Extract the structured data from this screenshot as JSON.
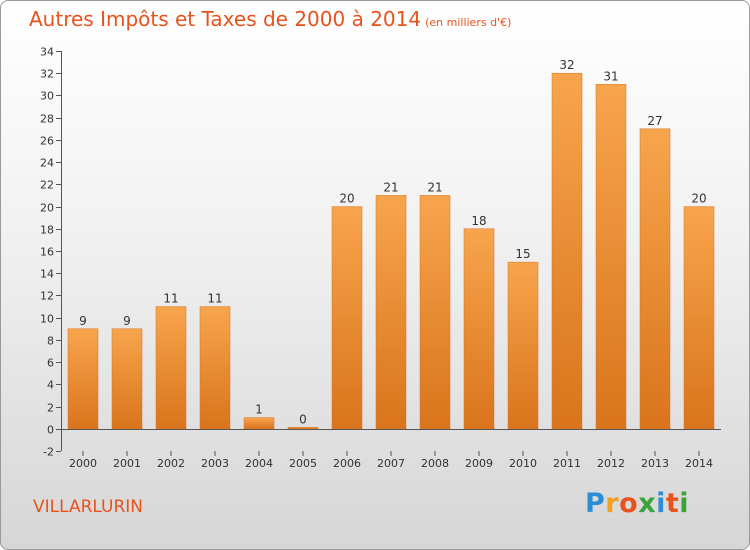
{
  "header": {
    "title": "Autres Impôts et Taxes de 2000 à 2014",
    "subtitle": "(en milliers d'€)"
  },
  "footer": {
    "place": "VILLARLURIN",
    "logo_letters": [
      "P",
      "r",
      "o",
      "x",
      "i",
      "t",
      "i"
    ],
    "logo_colors": [
      "#2c8fd6",
      "#f2a01e",
      "#e8531d",
      "#3aa33a",
      "#2c8fd6",
      "#e8531d",
      "#3aa33a"
    ]
  },
  "colors": {
    "bar_light": "#f7a54d",
    "bar_dark": "#d9741c",
    "accent": "#e8531d"
  },
  "chart_data": {
    "type": "bar",
    "title": "Autres Impôts et Taxes de 2000 à 2014",
    "subtitle": "(en milliers d'€)",
    "categories": [
      "2000",
      "2001",
      "2002",
      "2003",
      "2004",
      "2005",
      "2006",
      "2007",
      "2008",
      "2009",
      "2010",
      "2011",
      "2012",
      "2013",
      "2014"
    ],
    "values": [
      9,
      9,
      11,
      11,
      1,
      0,
      20,
      21,
      21,
      18,
      15,
      32,
      31,
      27,
      20
    ],
    "ylim": [
      -2,
      34
    ],
    "yticks": [
      -2,
      0,
      2,
      4,
      6,
      8,
      10,
      12,
      14,
      16,
      18,
      20,
      22,
      24,
      26,
      28,
      30,
      32,
      34
    ],
    "grid": false,
    "xlabel": "",
    "ylabel": ""
  }
}
